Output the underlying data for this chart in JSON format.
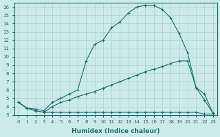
{
  "xlabel": "Humidex (Indice chaleur)",
  "ylabel": "",
  "background_color": "#cdeaea",
  "grid_color": "#aacfcf",
  "line_color": "#1a6b6b",
  "xlim": [
    -0.5,
    23.5
  ],
  "ylim": [
    3,
    16.5
  ],
  "xticks": [
    0,
    1,
    2,
    3,
    4,
    5,
    6,
    7,
    8,
    9,
    10,
    11,
    12,
    13,
    14,
    15,
    16,
    17,
    18,
    19,
    20,
    21,
    22,
    23
  ],
  "yticks": [
    3,
    4,
    5,
    6,
    7,
    8,
    9,
    10,
    11,
    12,
    13,
    14,
    15,
    16
  ],
  "series": [
    {
      "x": [
        0,
        1,
        2,
        3,
        4,
        5,
        6,
        7,
        8,
        9,
        10,
        11,
        12,
        13,
        14,
        15,
        16,
        17,
        18,
        19,
        20,
        21,
        22,
        23
      ],
      "y": [
        4.5,
        3.8,
        3.7,
        3.5,
        4.5,
        5.0,
        5.5,
        6.0,
        9.5,
        11.5,
        12.0,
        13.5,
        14.2,
        15.3,
        16.0,
        16.2,
        16.2,
        15.7,
        14.7,
        12.8,
        10.5,
        6.3,
        4.8,
        3.2
      ]
    },
    {
      "x": [
        0,
        1,
        2,
        3,
        4,
        5,
        6,
        7,
        8,
        9,
        10,
        11,
        12,
        13,
        14,
        15,
        16,
        17,
        18,
        19,
        20,
        21,
        22,
        23
      ],
      "y": [
        4.5,
        3.8,
        3.5,
        3.3,
        3.3,
        3.3,
        3.3,
        3.3,
        3.3,
        3.3,
        3.3,
        3.3,
        3.3,
        3.3,
        3.3,
        3.3,
        3.3,
        3.3,
        3.3,
        3.3,
        3.3,
        3.3,
        3.1,
        3.1
      ]
    },
    {
      "x": [
        0,
        1,
        2,
        3,
        4,
        5,
        6,
        7,
        8,
        9,
        10,
        11,
        12,
        13,
        14,
        15,
        16,
        17,
        18,
        19,
        20,
        21,
        22,
        23
      ],
      "y": [
        4.5,
        3.8,
        3.5,
        3.3,
        4.0,
        4.5,
        4.8,
        5.2,
        5.5,
        5.8,
        6.2,
        6.6,
        7.0,
        7.4,
        7.8,
        8.2,
        8.5,
        8.8,
        9.2,
        9.5,
        9.5,
        6.3,
        5.5,
        3.2
      ]
    }
  ]
}
